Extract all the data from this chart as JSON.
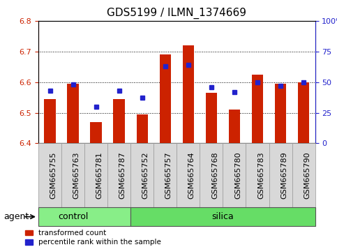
{
  "title": "GDS5199 / ILMN_1374669",
  "samples": [
    "GSM665755",
    "GSM665763",
    "GSM665781",
    "GSM665787",
    "GSM665752",
    "GSM665757",
    "GSM665764",
    "GSM665768",
    "GSM665780",
    "GSM665783",
    "GSM665789",
    "GSM665790"
  ],
  "groups": [
    "control",
    "control",
    "control",
    "control",
    "silica",
    "silica",
    "silica",
    "silica",
    "silica",
    "silica",
    "silica",
    "silica"
  ],
  "transformed_count": [
    6.545,
    6.595,
    6.47,
    6.545,
    6.495,
    6.69,
    6.72,
    6.565,
    6.51,
    6.625,
    6.595,
    6.6
  ],
  "percentile_rank": [
    43,
    48,
    30,
    43,
    37,
    63,
    64,
    46,
    42,
    50,
    47,
    50
  ],
  "ylim_left": [
    6.4,
    6.8
  ],
  "ylim_right": [
    0,
    100
  ],
  "yticks_left": [
    6.4,
    6.5,
    6.6,
    6.7,
    6.8
  ],
  "yticks_right": [
    0,
    25,
    50,
    75,
    100
  ],
  "bar_color": "#cc2200",
  "dot_color": "#2222cc",
  "bar_baseline": 6.4,
  "background_color": "#ffffff",
  "plot_bg_color": "#ffffff",
  "control_color": "#88ee88",
  "silica_color": "#66dd66",
  "agent_label": "agent",
  "group_labels": [
    "control",
    "silica"
  ],
  "legend_bar_label": "transformed count",
  "legend_dot_label": "percentile rank within the sample",
  "title_fontsize": 11,
  "tick_fontsize": 8,
  "label_fontsize": 9
}
